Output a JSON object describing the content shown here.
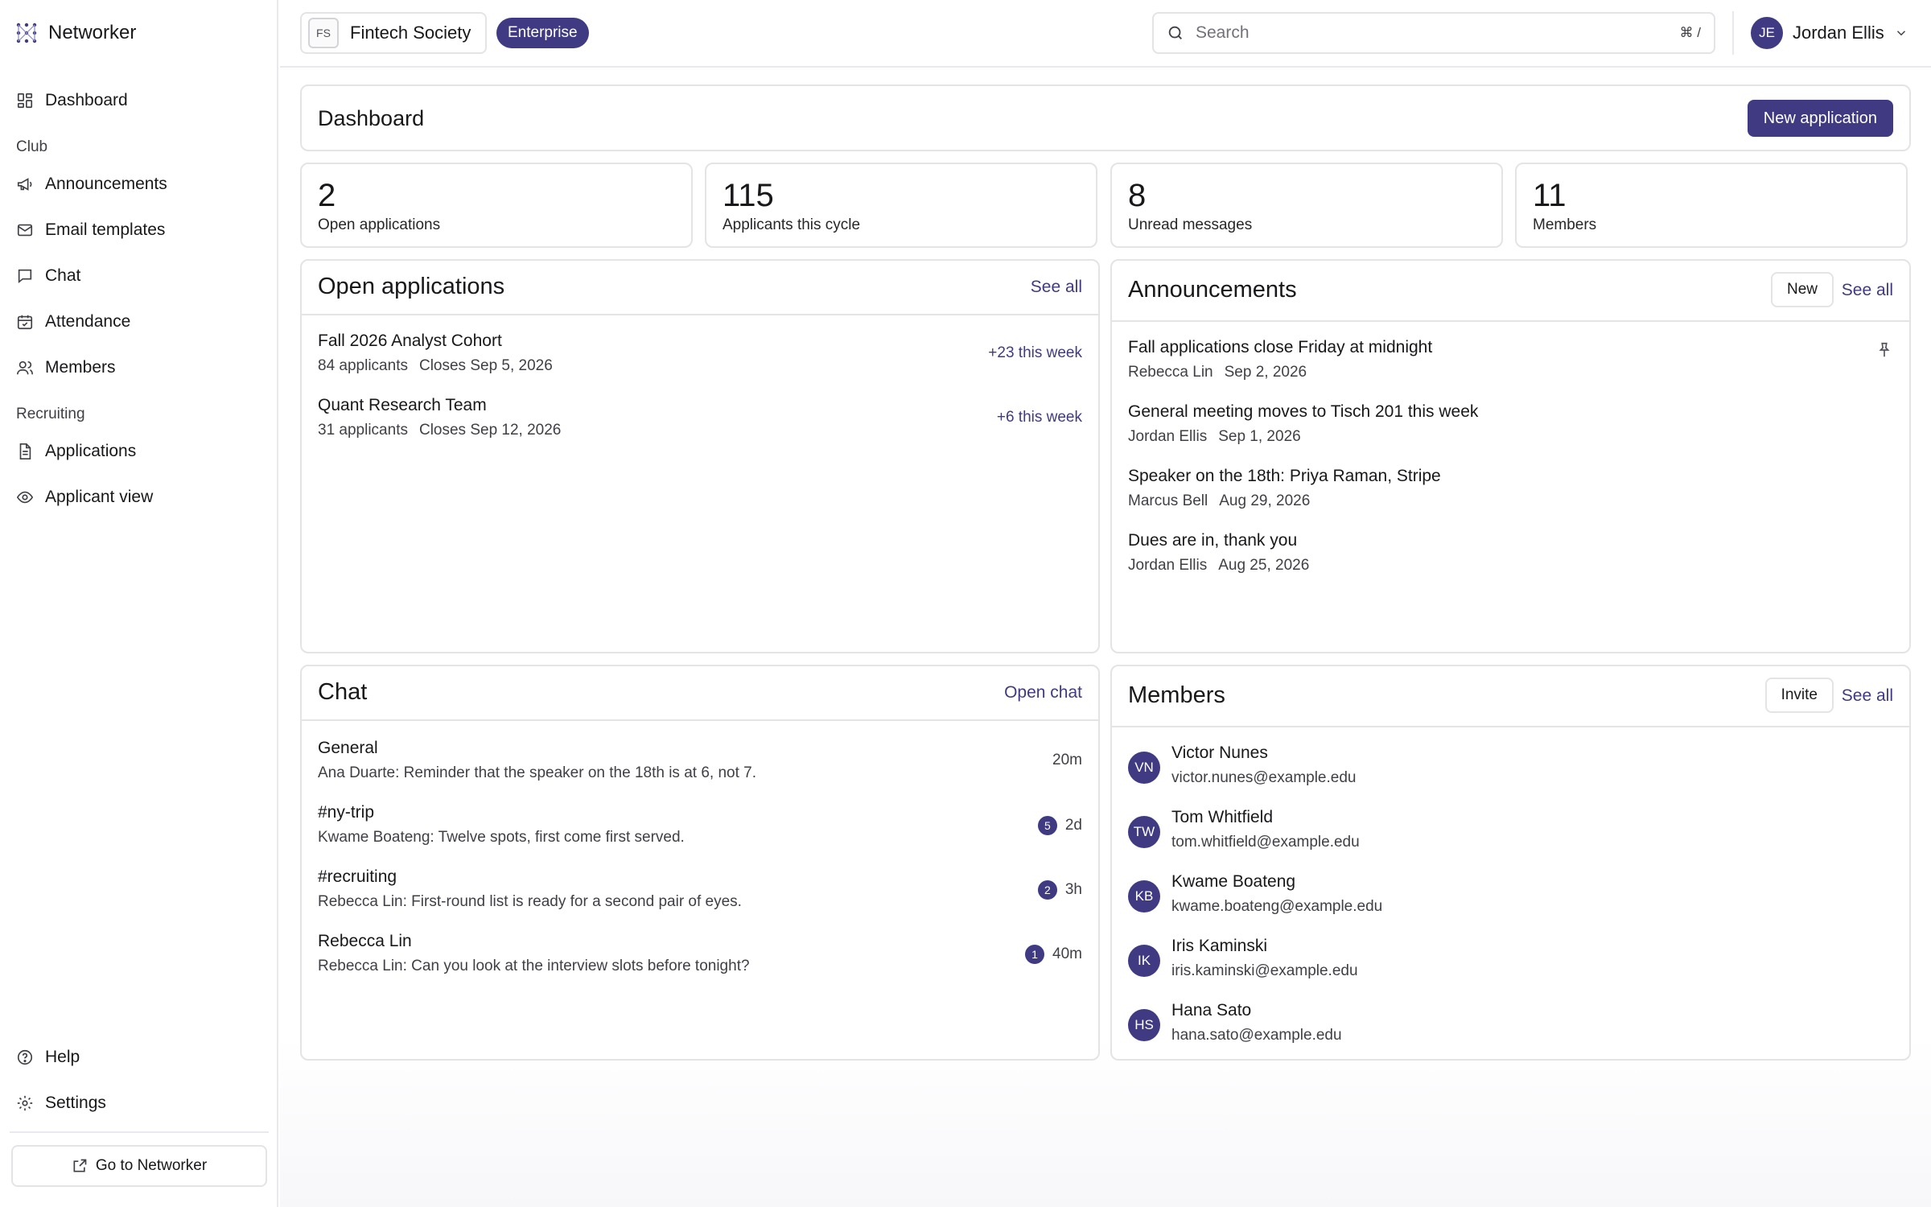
{
  "app": {
    "name": "Networker"
  },
  "sidebar": {
    "items": [
      {
        "label": "Dashboard",
        "icon": "dashboard-icon"
      },
      {
        "label": "Announcements",
        "icon": "megaphone-icon"
      },
      {
        "label": "Email templates",
        "icon": "mail-icon"
      },
      {
        "label": "Chat",
        "icon": "chat-bubble-icon"
      },
      {
        "label": "Attendance",
        "icon": "calendar-check-icon"
      },
      {
        "label": "Members",
        "icon": "users-icon"
      },
      {
        "label": "Applications",
        "icon": "document-icon"
      },
      {
        "label": "Applicant view",
        "icon": "eye-icon"
      },
      {
        "label": "Help",
        "icon": "help-circle-icon"
      },
      {
        "label": "Settings",
        "icon": "gear-icon"
      }
    ],
    "sections": {
      "club": "Club",
      "recruiting": "Recruiting"
    },
    "goto_label": "Go to Networker"
  },
  "topbar": {
    "org": {
      "initials": "FS",
      "name": "Fintech Society"
    },
    "plan": "Enterprise",
    "search": {
      "placeholder": "Search",
      "shortcut": "⌘ /"
    },
    "user": {
      "initials": "JE",
      "name": "Jordan Ellis"
    }
  },
  "dashboard": {
    "title": "Dashboard",
    "new_application_label": "New application",
    "stats": [
      {
        "value": "2",
        "label": "Open applications"
      },
      {
        "value": "115",
        "label": "Applicants this cycle"
      },
      {
        "value": "8",
        "label": "Unread messages"
      },
      {
        "value": "11",
        "label": "Members"
      }
    ]
  },
  "open_applications": {
    "title": "Open applications",
    "see_all": "See all",
    "items": [
      {
        "name": "Fall 2026 Analyst Cohort",
        "applicants": "84 applicants",
        "closes": "Closes Sep 5, 2026",
        "delta": "+23 this week"
      },
      {
        "name": "Quant Research Team",
        "applicants": "31 applicants",
        "closes": "Closes Sep 12, 2026",
        "delta": "+6 this week"
      }
    ]
  },
  "announcements": {
    "title": "Announcements",
    "new_label": "New",
    "see_all": "See all",
    "items": [
      {
        "title": "Fall applications close Friday at midnight",
        "author": "Rebecca Lin",
        "date": "Sep 2, 2026",
        "pinned": true
      },
      {
        "title": "General meeting moves to Tisch 201 this week",
        "author": "Jordan Ellis",
        "date": "Sep 1, 2026"
      },
      {
        "title": "Speaker on the 18th: Priya Raman, Stripe",
        "author": "Marcus Bell",
        "date": "Aug 29, 2026"
      },
      {
        "title": "Dues are in, thank you",
        "author": "Jordan Ellis",
        "date": "Aug 25, 2026"
      }
    ]
  },
  "chat": {
    "title": "Chat",
    "open_label": "Open chat",
    "items": [
      {
        "name": "General",
        "preview": "Ana Duarte: Reminder that the speaker on the 18th is at 6, not 7.",
        "time": "20m",
        "unread": ""
      },
      {
        "name": "#ny-trip",
        "preview": "Kwame Boateng: Twelve spots, first come first served.",
        "time": "2d",
        "unread": "5"
      },
      {
        "name": "#recruiting",
        "preview": "Rebecca Lin: First-round list is ready for a second pair of eyes.",
        "time": "3h",
        "unread": "2"
      },
      {
        "name": "Rebecca Lin",
        "preview": "Rebecca Lin: Can you look at the interview slots before tonight?",
        "time": "40m",
        "unread": "1"
      }
    ]
  },
  "members": {
    "title": "Members",
    "invite_label": "Invite",
    "see_all": "See all",
    "items": [
      {
        "initials": "VN",
        "name": "Victor Nunes",
        "email": "victor.nunes@example.edu"
      },
      {
        "initials": "TW",
        "name": "Tom Whitfield",
        "email": "tom.whitfield@example.edu"
      },
      {
        "initials": "KB",
        "name": "Kwame Boateng",
        "email": "kwame.boateng@example.edu"
      },
      {
        "initials": "IK",
        "name": "Iris Kaminski",
        "email": "iris.kaminski@example.edu"
      },
      {
        "initials": "HS",
        "name": "Hana Sato",
        "email": "hana.sato@example.edu"
      }
    ]
  },
  "colors": {
    "accent": "#3f3a82",
    "border": "#e4e4e7",
    "text": "#18181b",
    "muted": "#3f3f46"
  }
}
